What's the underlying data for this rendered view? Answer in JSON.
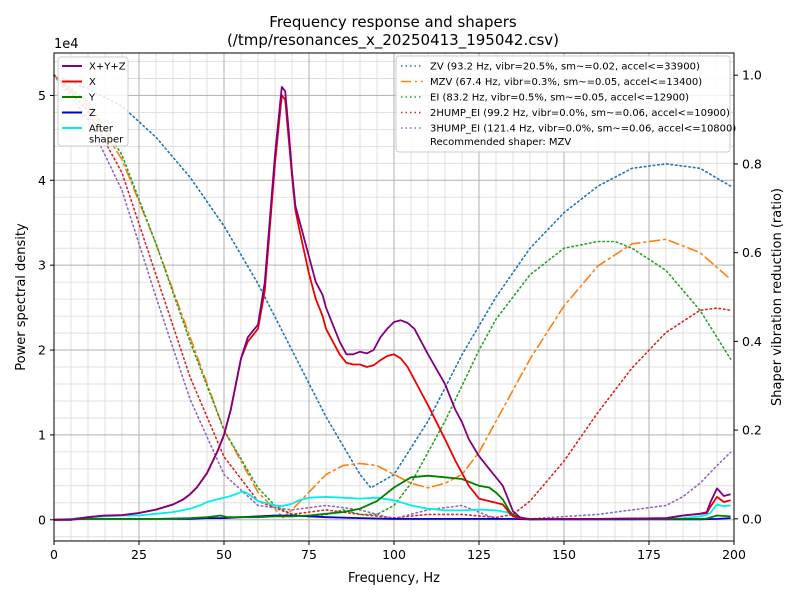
{
  "chart_data": {
    "type": "line",
    "title": "Frequency response and shapers",
    "subtitle": "(/tmp/resonances_x_20250413_195042.csv)",
    "xlabel": "Frequency, Hz",
    "ylabel": "Power spectral density",
    "y2label": "Shaper vibration reduction (ratio)",
    "y_offset_label": "1e4",
    "xlim": [
      0,
      200
    ],
    "ylim": [
      -2500,
      55000
    ],
    "y2lim": [
      -0.05,
      1.05
    ],
    "x_ticks": [
      "0",
      "25",
      "50",
      "75",
      "100",
      "125",
      "150",
      "175",
      "200"
    ],
    "y_ticks": [
      "0",
      "1",
      "2",
      "3",
      "4",
      "5"
    ],
    "y2_ticks": [
      "0.0",
      "0.2",
      "0.4",
      "0.6",
      "0.8",
      "1.0"
    ],
    "grid": true,
    "legend_left_position": "top-left",
    "legend_right_position": "top-right",
    "psd_series": [
      {
        "name": "X+Y+Z",
        "color": "#800080",
        "x": [
          0,
          5,
          10,
          15,
          20,
          25,
          30,
          35,
          38,
          40,
          42,
          45,
          48,
          50,
          52,
          55,
          57,
          60,
          62,
          64,
          65,
          66,
          67,
          68,
          69,
          70,
          71,
          72,
          75,
          77,
          79,
          80,
          82,
          84,
          86,
          88,
          90,
          92,
          94,
          96,
          98,
          100,
          102,
          104,
          106,
          108,
          110,
          115,
          118,
          120,
          122,
          125,
          128,
          130,
          132,
          134,
          135,
          137,
          140,
          150,
          160,
          170,
          180,
          185,
          190,
          192,
          193,
          195,
          197,
          199
        ],
        "y": [
          0,
          0,
          300,
          500,
          550,
          800,
          1200,
          1800,
          2400,
          3000,
          3800,
          5500,
          8000,
          10000,
          13000,
          19000,
          21500,
          23000,
          28000,
          38000,
          43000,
          47000,
          51000,
          50500,
          46000,
          41000,
          37000,
          35500,
          31000,
          28000,
          26500,
          25000,
          23000,
          21000,
          19500,
          19500,
          19800,
          19600,
          20000,
          21500,
          22500,
          23300,
          23500,
          23200,
          22500,
          21000,
          19500,
          16000,
          13000,
          11500,
          9500,
          7500,
          6000,
          5000,
          4000,
          2000,
          1000,
          300,
          50,
          100,
          100,
          150,
          200,
          500,
          700,
          900,
          2000,
          3700,
          2800,
          3000
        ]
      },
      {
        "name": "X",
        "color": "#ee0000",
        "x": [
          0,
          5,
          10,
          15,
          20,
          25,
          30,
          35,
          38,
          40,
          42,
          45,
          48,
          50,
          52,
          55,
          57,
          60,
          62,
          64,
          65,
          66,
          67,
          68,
          69,
          70,
          71,
          72,
          75,
          77,
          79,
          80,
          82,
          84,
          86,
          88,
          90,
          92,
          94,
          96,
          98,
          100,
          102,
          104,
          106,
          108,
          110,
          115,
          118,
          120,
          122,
          125,
          128,
          130,
          132,
          134,
          135,
          137,
          140,
          150,
          160,
          170,
          180,
          185,
          190,
          192,
          193,
          195,
          197,
          199
        ],
        "y": [
          0,
          0,
          300,
          500,
          550,
          800,
          1200,
          1800,
          2400,
          3000,
          3800,
          5500,
          8000,
          10000,
          13000,
          19000,
          21000,
          22500,
          27000,
          37000,
          42000,
          46000,
          50000,
          49500,
          45000,
          40500,
          36500,
          34500,
          29000,
          26000,
          24000,
          22500,
          21000,
          19500,
          18500,
          18300,
          18300,
          18000,
          18200,
          18800,
          19300,
          19500,
          19000,
          18000,
          16500,
          15000,
          13500,
          9500,
          7000,
          5500,
          4000,
          2500,
          2200,
          2000,
          1800,
          800,
          400,
          200,
          50,
          100,
          100,
          150,
          200,
          500,
          700,
          800,
          1500,
          2700,
          2100,
          2300
        ]
      },
      {
        "name": "Y",
        "color": "#008000",
        "x": [
          0,
          10,
          20,
          30,
          40,
          45,
          47,
          49,
          51,
          55,
          60,
          65,
          70,
          75,
          80,
          85,
          90,
          95,
          100,
          105,
          110,
          115,
          120,
          125,
          128,
          130,
          132,
          134,
          135,
          137,
          140,
          150,
          160,
          170,
          180,
          190,
          192,
          195,
          199
        ],
        "y": [
          0,
          100,
          100,
          100,
          200,
          300,
          400,
          500,
          300,
          300,
          300,
          400,
          400,
          500,
          700,
          900,
          1300,
          2200,
          3800,
          5000,
          5200,
          5000,
          4800,
          4000,
          3800,
          3200,
          2400,
          1000,
          600,
          200,
          100,
          100,
          100,
          100,
          100,
          100,
          150,
          500,
          400
        ]
      },
      {
        "name": "Z",
        "color": "#0000cc",
        "x": [
          0,
          10,
          20,
          30,
          40,
          45,
          50,
          55,
          60,
          65,
          70,
          75,
          80,
          90,
          100,
          110,
          120,
          130,
          135,
          140,
          150,
          160,
          170,
          180,
          190,
          195,
          199
        ],
        "y": [
          0,
          100,
          100,
          100,
          100,
          200,
          200,
          300,
          400,
          500,
          500,
          400,
          300,
          200,
          100,
          100,
          100,
          100,
          100,
          50,
          50,
          50,
          50,
          50,
          50,
          100,
          200
        ]
      },
      {
        "name": "After\nshaper",
        "color": "#00eeee",
        "x": [
          0,
          5,
          10,
          15,
          20,
          25,
          30,
          35,
          40,
          43,
          45,
          48,
          50,
          52,
          54,
          55,
          56,
          57,
          58,
          60,
          62,
          65,
          67,
          68,
          70,
          72,
          75,
          80,
          85,
          90,
          95,
          100,
          105,
          110,
          115,
          120,
          125,
          130,
          133,
          135,
          137,
          140,
          150,
          160,
          170,
          180,
          185,
          190,
          192,
          193,
          195,
          197,
          199
        ],
        "y": [
          0,
          100,
          300,
          400,
          500,
          500,
          700,
          900,
          1300,
          1700,
          2100,
          2400,
          2600,
          2800,
          3100,
          3300,
          3300,
          3100,
          2800,
          2200,
          2000,
          1700,
          1600,
          1700,
          1900,
          2300,
          2600,
          2700,
          2600,
          2500,
          2600,
          2300,
          1700,
          1300,
          1100,
          1100,
          1200,
          1100,
          900,
          500,
          200,
          100,
          50,
          50,
          50,
          100,
          200,
          400,
          600,
          800,
          1800,
          1600,
          1700
        ]
      }
    ],
    "shaper_series": [
      {
        "name": "ZV (93.2 Hz, vibr=20.5%, sm~=0.02, accel<=33900)",
        "color": "#1f77b4",
        "style": "dotted",
        "x": [
          0,
          10,
          20,
          30,
          40,
          50,
          60,
          70,
          80,
          90,
          93.2,
          100,
          110,
          120,
          130,
          140,
          150,
          160,
          170,
          180,
          190,
          199
        ],
        "y": [
          1.0,
          0.97,
          0.93,
          0.86,
          0.77,
          0.66,
          0.53,
          0.38,
          0.23,
          0.1,
          0.07,
          0.1,
          0.22,
          0.37,
          0.5,
          0.61,
          0.69,
          0.75,
          0.79,
          0.8,
          0.79,
          0.75
        ]
      },
      {
        "name": "MZV (67.4 Hz, vibr=0.3%, sm~=0.05, accel<=13400)",
        "color": "#ff7f0e",
        "style": "dashdot",
        "x": [
          0,
          10,
          20,
          30,
          40,
          50,
          60,
          67.4,
          70,
          75,
          80,
          85,
          90,
          95,
          100,
          105,
          110,
          115,
          120,
          125,
          130,
          140,
          150,
          160,
          170,
          180,
          190,
          199
        ],
        "y": [
          1.0,
          0.93,
          0.81,
          0.62,
          0.41,
          0.2,
          0.06,
          0.003,
          0.02,
          0.06,
          0.1,
          0.12,
          0.125,
          0.12,
          0.1,
          0.08,
          0.07,
          0.08,
          0.1,
          0.15,
          0.22,
          0.36,
          0.48,
          0.57,
          0.62,
          0.63,
          0.6,
          0.54
        ]
      },
      {
        "name": "EI (83.2 Hz, vibr=0.5%, sm~=0.05, accel<=12900)",
        "color": "#2ca02c",
        "style": "dotted",
        "x": [
          0,
          10,
          20,
          30,
          40,
          50,
          60,
          65,
          70,
          75,
          80,
          85,
          90,
          95,
          100,
          105,
          110,
          115,
          120,
          125,
          130,
          140,
          150,
          160,
          165,
          170,
          180,
          190,
          199
        ],
        "y": [
          1.0,
          0.94,
          0.82,
          0.62,
          0.4,
          0.2,
          0.07,
          0.03,
          0.01,
          0.005,
          0.01,
          0.02,
          0.01,
          0.01,
          0.03,
          0.08,
          0.15,
          0.22,
          0.3,
          0.38,
          0.45,
          0.55,
          0.61,
          0.625,
          0.625,
          0.61,
          0.56,
          0.47,
          0.36
        ]
      },
      {
        "name": "2HUMP_EI (99.2 Hz, vibr=0.0%, sm~=0.06, accel<=10900)",
        "color": "#d62728",
        "style": "dotted",
        "x": [
          0,
          10,
          20,
          30,
          40,
          50,
          60,
          70,
          80,
          90,
          100,
          110,
          120,
          130,
          135,
          140,
          150,
          160,
          170,
          180,
          190,
          195,
          199
        ],
        "y": [
          1.0,
          0.92,
          0.78,
          0.55,
          0.32,
          0.14,
          0.04,
          0.01,
          0.02,
          0.01,
          0.002,
          0.01,
          0.01,
          0.003,
          0.01,
          0.04,
          0.13,
          0.24,
          0.34,
          0.42,
          0.47,
          0.475,
          0.47
        ]
      },
      {
        "name": "3HUMP_EI (121.4 Hz, vibr=0.0%, sm~=0.06, accel<=10800)",
        "color": "#9467bd",
        "style": "dotted",
        "x": [
          0,
          10,
          20,
          30,
          40,
          50,
          60,
          70,
          80,
          90,
          100,
          110,
          120,
          130,
          140,
          150,
          160,
          170,
          180,
          185,
          190,
          195,
          199
        ],
        "y": [
          1.0,
          0.9,
          0.74,
          0.5,
          0.27,
          0.1,
          0.03,
          0.02,
          0.03,
          0.02,
          0.0,
          0.02,
          0.03,
          0.0,
          0.0,
          0.005,
          0.01,
          0.02,
          0.03,
          0.05,
          0.08,
          0.12,
          0.15
        ]
      }
    ],
    "recommended_text": "Recommended shaper: MZV"
  }
}
